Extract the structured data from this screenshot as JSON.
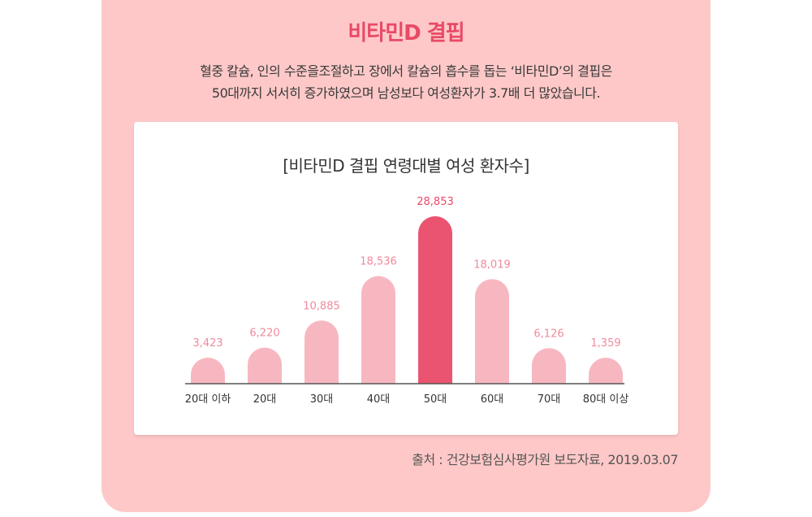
{
  "page": {
    "title": "비타민D 결핍",
    "description_line1": "혈중 칼슘, 인의 수준을조절하고 장에서 칼슘의 흡수를 돕는 ‘비타민D’의 결핍은",
    "description_line2": "50대까지 서서히 증가하였으며 남성보다 여성환자가 3.7배 더 많았습니다.",
    "source": "출처 : 건강보험심사평가원 보도자료, 2019.03.07"
  },
  "colors": {
    "background_card": "#fec8c8",
    "title": "#e84a66",
    "bar_default": "#f7b7c1",
    "bar_highlight": "#ea5470",
    "label_default": "#f08a9c",
    "label_highlight": "#e84a66"
  },
  "chart_data": {
    "type": "bar",
    "title": "[비타민D 결핍 연령대별 여성 환자수]",
    "categories": [
      "20대 이하",
      "20대",
      "30대",
      "40대",
      "50대",
      "60대",
      "70대",
      "80대 이상"
    ],
    "values": [
      3423,
      6220,
      10885,
      18536,
      28853,
      18019,
      6126,
      1359
    ],
    "value_labels": [
      "3,423",
      "6,220",
      "10,885",
      "18,536",
      "28,853",
      "18,019",
      "6,126",
      "1,359"
    ],
    "highlight_index": 4,
    "xlabel": "",
    "ylabel": "",
    "ylim": [
      0,
      28853
    ],
    "grid": false,
    "legend": "none"
  }
}
